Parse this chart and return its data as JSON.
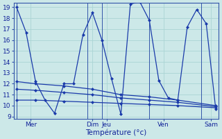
{
  "xlabel": "Température (°c)",
  "bg_color": "#cce8e8",
  "line_color": "#1a3aaa",
  "grid_color": "#aad4d4",
  "ylim": [
    8.8,
    19.4
  ],
  "yticks": [
    9,
    10,
    11,
    12,
    13,
    14,
    15,
    16,
    17,
    18,
    19
  ],
  "xlim": [
    -0.3,
    21.3
  ],
  "day_tick_positions": [
    0,
    6,
    8,
    13,
    18
  ],
  "day_labels": [
    "Mer",
    "Dim",
    "Jeu",
    "Ven",
    "Sam"
  ],
  "vline_positions": [
    0,
    7.0,
    8.5,
    13.5,
    18.5
  ],
  "main_x": [
    0,
    1,
    2,
    3,
    4,
    5,
    6,
    7,
    8,
    9,
    10,
    11,
    12,
    13,
    14,
    15,
    16,
    17,
    18,
    19,
    20,
    21
  ],
  "main_y": [
    19,
    16.7,
    12.2,
    10.5,
    9.3,
    12.0,
    12.0,
    16.5,
    18.5,
    16.0,
    12.5,
    9.2,
    19.3,
    19.5,
    17.8,
    12.3,
    10.7,
    10.5,
    17.2,
    18.8,
    17.5,
    9.7
  ],
  "line2_x": [
    0,
    2,
    5,
    8,
    11,
    14,
    17,
    21
  ],
  "line2_y": [
    12.2,
    12.0,
    11.8,
    11.5,
    11.0,
    10.8,
    10.5,
    10.0
  ],
  "line3_x": [
    0,
    2,
    5,
    8,
    11,
    14,
    17,
    21
  ],
  "line3_y": [
    11.5,
    11.4,
    11.2,
    11.0,
    10.7,
    10.5,
    10.3,
    9.9
  ],
  "line4_x": [
    0,
    2,
    5,
    8,
    11,
    14,
    17,
    21
  ],
  "line4_y": [
    10.5,
    10.5,
    10.4,
    10.3,
    10.2,
    10.1,
    10.0,
    9.8
  ]
}
